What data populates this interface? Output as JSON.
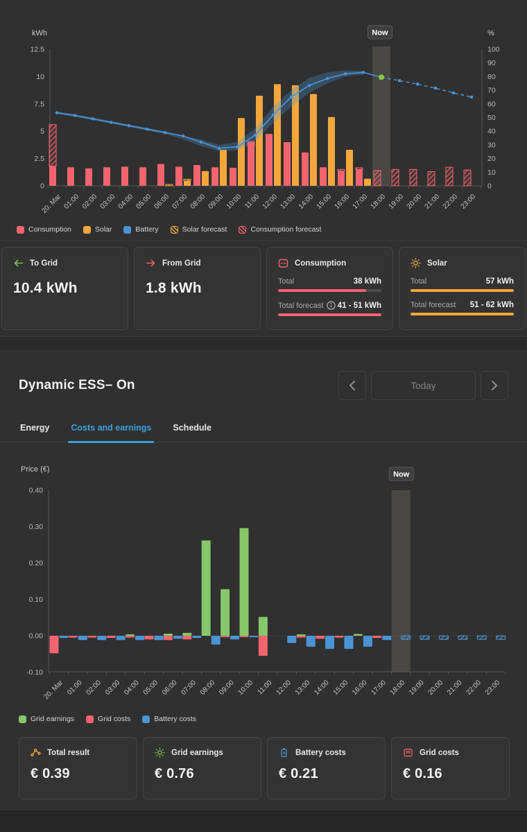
{
  "colors": {
    "consumption": "#f2646e",
    "solar": "#f2a73d",
    "battery": "#4a94d4",
    "earnings_green": "#85c76a",
    "now_dot_green": "#8bc34a",
    "tab_active_blue": "#3aa0e0",
    "to_grid_green": "#82b74e",
    "from_grid_red": "#e06060"
  },
  "chart_data": [
    {
      "type": "bar",
      "subtype": "grouped bars + battery SOC line, hourly energy",
      "now_label": "Now",
      "now_hour": 18,
      "left_axis": {
        "label": "kWh",
        "max": 12.5,
        "ticks": [
          {
            "label": "0",
            "v": 0
          },
          {
            "label": "2.5",
            "v": 2.5
          },
          {
            "label": "5",
            "v": 5
          },
          {
            "label": "7.5",
            "v": 7.5
          },
          {
            "label": "10",
            "v": 10
          },
          {
            "label": "12.5",
            "v": 12.5
          }
        ]
      },
      "right_axis": {
        "label": "%",
        "max": 100,
        "ticks": [
          0,
          10,
          20,
          30,
          40,
          50,
          60,
          70,
          80,
          90,
          100
        ]
      },
      "categories": [
        "20. Mar",
        "01:00",
        "02:00",
        "03:00",
        "04:00",
        "05:00",
        "06:00",
        "07:00",
        "08:00",
        "09:00",
        "10:00",
        "11:00",
        "12:00",
        "13:00",
        "14:00",
        "15:00",
        "16:00",
        "17:00",
        "18:00",
        "19:00",
        "20:00",
        "21:00",
        "22:00",
        "23:00"
      ],
      "series": {
        "consumption": [
          1.8,
          1.7,
          1.6,
          1.7,
          1.75,
          1.7,
          2.0,
          1.75,
          1.9,
          1.7,
          1.65,
          4.05,
          4.75,
          4.0,
          3.05,
          1.7,
          1.35,
          1.5,
          0,
          0,
          0,
          0,
          0,
          0
        ],
        "consumption_forecast_caps": {
          "0": [
            1.8,
            5.6
          ],
          "11": [
            3.6,
            4.05
          ],
          "16": [
            1.35,
            1.5
          ],
          "17": [
            1.5,
            1.65
          ]
        },
        "consumption_forecast": {
          "18": 1.4,
          "19": 1.5,
          "20": 1.5,
          "21": 1.3,
          "22": 1.7,
          "23": 1.45
        },
        "solar": [
          0,
          0,
          0,
          0,
          0,
          0,
          0,
          0.45,
          1.35,
          3.3,
          6.2,
          8.25,
          9.3,
          9.2,
          8.4,
          6.3,
          3.3,
          0.65,
          0,
          0,
          0,
          0,
          0,
          0
        ],
        "solar_forecast_caps": {
          "6": [
            0,
            0.12
          ],
          "7": [
            0.45,
            0.6
          ]
        },
        "battery_pct": [
          53.5,
          51.5,
          49,
          46.5,
          44,
          41.5,
          39,
          36.5,
          32,
          27.5,
          28.5,
          37,
          52,
          65,
          73.5,
          78.5,
          82,
          83
        ],
        "battery_band": {
          "start_hour": 0,
          "lower": [
            52.5,
            50.5,
            48,
            45.5,
            43,
            40.5,
            38,
            34,
            29,
            25.5,
            26,
            33,
            46,
            58,
            68,
            75,
            80,
            81.5
          ],
          "upper": [
            54.5,
            52.5,
            50,
            47.5,
            45,
            42.5,
            40,
            36.5,
            34,
            30,
            32,
            42,
            58,
            70,
            79,
            83,
            84.5,
            84
          ]
        },
        "now_point": {
          "hour": 18,
          "value": 79.5
        },
        "battery_forecast_pct": {
          "18": 79.5,
          "19": 77,
          "20": 74.5,
          "21": 71.5,
          "22": 68,
          "23": 65
        }
      },
      "legend": [
        {
          "label": "Consumption",
          "color": "#f2646e",
          "hatched": false
        },
        {
          "label": "Solar",
          "color": "#f2a73d",
          "hatched": false
        },
        {
          "label": "Battery",
          "color": "#4a94d4",
          "hatched": false
        },
        {
          "label": "Solar forecast",
          "color": "#f2a73d",
          "hatched": true
        },
        {
          "label": "Consumption forecast",
          "color": "#f2646e",
          "hatched": true
        }
      ]
    },
    {
      "type": "bar",
      "subtype": "grouped hourly costs/earnings",
      "now_label": "Now",
      "now_hour": 18,
      "y_axis": {
        "label": "Price (€)",
        "ticks": [
          {
            "label": "0.40",
            "v": 0.4
          },
          {
            "label": "0.30",
            "v": 0.3
          },
          {
            "label": "0.20",
            "v": 0.2
          },
          {
            "label": "0.10",
            "v": 0.1
          },
          {
            "label": "0.00",
            "v": 0.0
          },
          {
            "label": "-0.10",
            "v": -0.1
          }
        ]
      },
      "categories": [
        "20. Mar",
        "01:00",
        "02:00",
        "03:00",
        "04:00",
        "05:00",
        "06:00",
        "07:00",
        "08:00",
        "09:00",
        "10:00",
        "11:00",
        "12:00",
        "13:00",
        "14:00",
        "15:00",
        "16:00",
        "17:00",
        "18:00",
        "19:00",
        "20:00",
        "21:00",
        "22:00",
        "23:00"
      ],
      "series": [
        {
          "name": "Grid earnings",
          "color": "#85c76a",
          "slot": "left",
          "values": [
            0,
            0,
            0,
            0,
            0.004,
            0,
            0.006,
            0.008,
            0.262,
            0.128,
            0.296,
            0.052,
            0,
            0.004,
            0,
            0,
            0.005,
            0,
            0,
            0,
            0,
            0,
            0,
            0
          ]
        },
        {
          "name": "Grid costs",
          "color": "#f2646e",
          "slot": "left",
          "values": [
            -0.048,
            -0.005,
            -0.005,
            -0.006,
            -0.005,
            -0.01,
            -0.012,
            -0.01,
            0,
            -0.004,
            -0.004,
            -0.055,
            0,
            -0.005,
            -0.008,
            -0.005,
            0,
            -0.006,
            0,
            0,
            0,
            0,
            0,
            0
          ]
        },
        {
          "name": "Battery costs",
          "color": "#4a94d4",
          "slot": "right",
          "forecast_from": 18,
          "values": [
            -0.006,
            -0.012,
            -0.012,
            -0.012,
            -0.012,
            -0.012,
            -0.008,
            -0.006,
            -0.024,
            -0.01,
            -0.004,
            0,
            -0.02,
            -0.03,
            -0.036,
            -0.036,
            -0.03,
            -0.012,
            -0.01,
            -0.01,
            -0.01,
            -0.01,
            -0.01,
            -0.01
          ]
        }
      ],
      "legend": [
        {
          "label": "Grid earnings",
          "color": "#85c76a",
          "hatched": false
        },
        {
          "label": "Grid costs",
          "color": "#f2646e",
          "hatched": false
        },
        {
          "label": "Battery costs",
          "color": "#4a94d4",
          "hatched": false
        }
      ]
    }
  ],
  "top_section": {
    "cards": [
      {
        "title": "To Grid",
        "icon": "arrow-left",
        "icon_color": "#82b74e",
        "value": "10.4 kWh"
      },
      {
        "title": "From Grid",
        "icon": "arrow-right",
        "icon_color": "#e06060",
        "value": "1.8 kWh"
      },
      {
        "title": "Consumption",
        "icon": "socket",
        "icon_color": "#f2646e",
        "rows": [
          {
            "label": "Total",
            "value": "38 kWh",
            "bar_pct": 85
          },
          {
            "label": "Total forecast",
            "value": "41 - 51 kWh",
            "bar_pct": 100,
            "info": true
          }
        ]
      },
      {
        "title": "Solar",
        "icon": "sun",
        "icon_color": "#f2a73d",
        "rows": [
          {
            "label": "Total",
            "value": "57 kWh",
            "bar_pct": 100
          },
          {
            "label": "Total forecast",
            "value": "51 - 62 kWh",
            "bar_pct": 100
          }
        ]
      }
    ]
  },
  "bottom_section": {
    "title": "Dynamic ESS– On",
    "nav": {
      "prev": "chevron-left",
      "today": "Today",
      "next": "chevron-right"
    },
    "tabs": [
      {
        "label": "Energy",
        "active": false
      },
      {
        "label": "Costs and earnings",
        "active": true
      },
      {
        "label": "Schedule",
        "active": false
      }
    ],
    "cards": [
      {
        "title": "Total result",
        "icon": "branch",
        "icon_color": "#f2a73d",
        "value": "€ 0.39"
      },
      {
        "title": "Grid earnings",
        "icon": "sun",
        "icon_color": "#82b74e",
        "value": "€ 0.76"
      },
      {
        "title": "Battery costs",
        "icon": "battery",
        "icon_color": "#4a94d4",
        "value": "€ 0.21"
      },
      {
        "title": "Grid costs",
        "icon": "meter",
        "icon_color": "#e06060",
        "value": "€ 0.16"
      }
    ]
  }
}
